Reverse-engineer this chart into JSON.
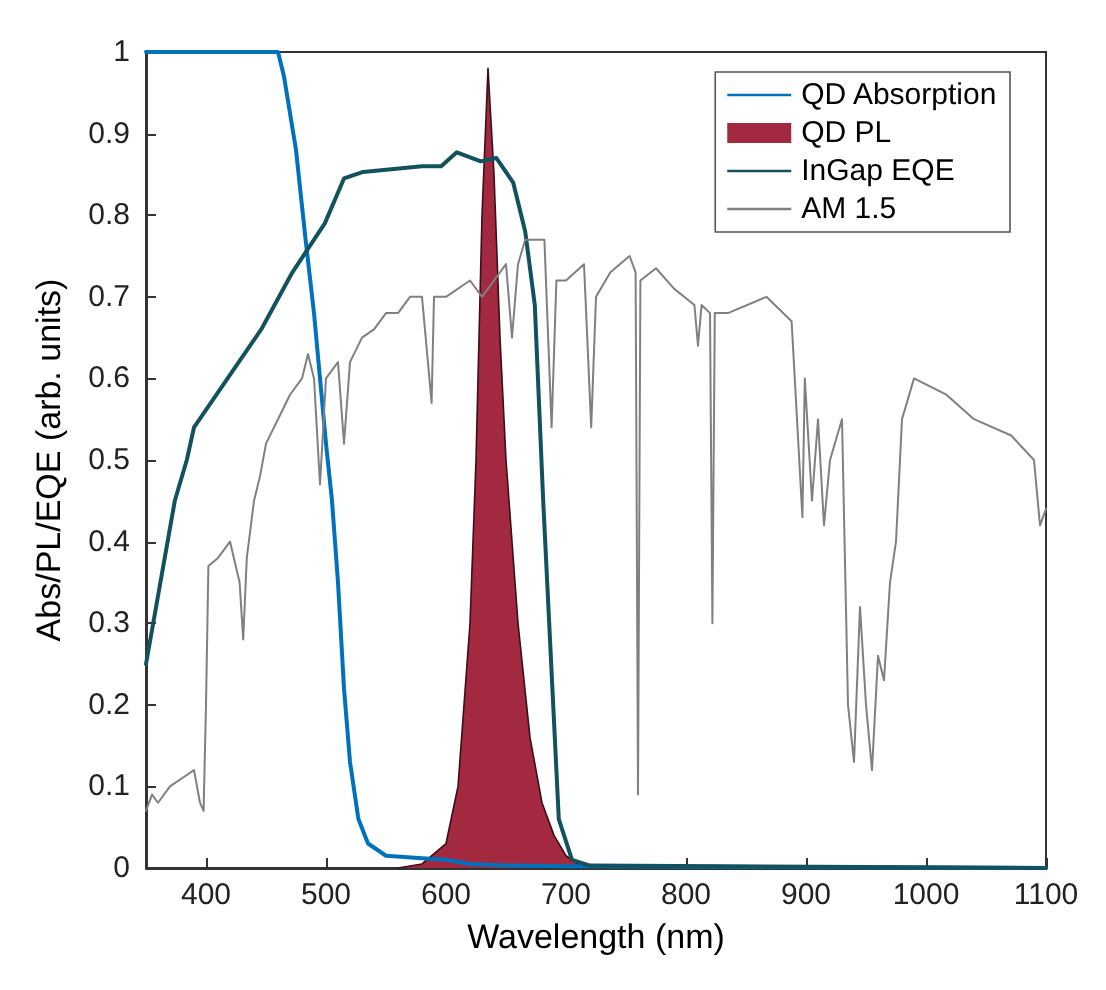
{
  "chart_data": {
    "type": "line",
    "xlabel": "Wavelength (nm)",
    "ylabel": "Abs/PL/EQE (arb. units)",
    "xlim": [
      350,
      1100
    ],
    "xticks": [
      400,
      500,
      600,
      700,
      800,
      900,
      1000,
      1100
    ],
    "ylim": [
      0,
      1
    ],
    "yticks": [
      0,
      0.1,
      0.2,
      0.3,
      0.4,
      0.5,
      0.6,
      0.7,
      0.8,
      0.9,
      1
    ],
    "grid": false,
    "legend": "top right",
    "marker": "none",
    "line_style": "solid",
    "series": [
      {
        "name": "QD Absorption",
        "color": "#0072bd",
        "x": [
          350,
          460,
          465,
          475,
          483,
          490,
          500,
          505,
          510,
          515,
          520,
          527,
          535,
          550,
          580,
          600,
          620,
          650,
          700,
          1100
        ],
        "values": [
          1,
          1,
          0.97,
          0.88,
          0.77,
          0.68,
          0.52,
          0.45,
          0.35,
          0.22,
          0.13,
          0.06,
          0.03,
          0.015,
          0.012,
          0.01,
          0.005,
          0.003,
          0.002,
          0
        ]
      },
      {
        "name": "QD PL",
        "type": "area",
        "color": "#a2293f",
        "x": [
          560,
          580,
          600,
          610,
          620,
          625,
          630,
          635,
          640,
          645,
          650,
          660,
          670,
          680,
          690,
          700,
          715
        ],
        "values": [
          0,
          0.005,
          0.03,
          0.1,
          0.3,
          0.5,
          0.8,
          0.98,
          0.85,
          0.65,
          0.5,
          0.3,
          0.16,
          0.08,
          0.04,
          0.015,
          0
        ]
      },
      {
        "name": "InGap EQE",
        "color": "#12525e",
        "x": [
          350,
          374,
          384,
          390,
          418,
          446,
          472,
          499,
          515,
          531,
          580,
          596,
          609,
          629,
          642,
          656,
          666,
          674,
          681,
          694,
          705,
          720,
          1100
        ],
        "values": [
          0.25,
          0.45,
          0.5,
          0.54,
          0.6,
          0.66,
          0.73,
          0.79,
          0.845,
          0.853,
          0.86,
          0.86,
          0.877,
          0.866,
          0.87,
          0.84,
          0.78,
          0.69,
          0.45,
          0.06,
          0.01,
          0.003,
          0
        ]
      },
      {
        "name": "AM 1.5",
        "color": "#808080",
        "x": [
          350,
          355,
          360,
          370,
          380,
          390,
          395,
          398,
          400,
          402,
          410,
          420,
          428,
          431,
          434,
          440,
          445,
          450,
          460,
          470,
          480,
          485,
          490,
          495,
          500,
          510,
          515,
          520,
          530,
          540,
          550,
          560,
          570,
          580,
          588,
          590,
          600,
          620,
          630,
          640,
          650,
          655,
          660,
          666,
          682,
          688,
          692,
          700,
          715,
          721,
          725,
          737,
          753,
          758,
          760,
          762,
          775,
          790,
          807,
          810,
          813,
          820,
          822,
          824,
          835,
          867,
          888,
          897,
          899,
          905,
          910,
          915,
          920,
          930,
          935,
          940,
          945,
          950,
          955,
          960,
          965,
          970,
          975,
          980,
          990,
          1017,
          1040,
          1071,
          1090,
          1095,
          1100
        ],
        "values": [
          0.07,
          0.09,
          0.08,
          0.1,
          0.11,
          0.12,
          0.08,
          0.07,
          0.2,
          0.37,
          0.38,
          0.4,
          0.35,
          0.28,
          0.38,
          0.45,
          0.48,
          0.52,
          0.55,
          0.58,
          0.6,
          0.63,
          0.6,
          0.47,
          0.6,
          0.62,
          0.52,
          0.62,
          0.65,
          0.66,
          0.68,
          0.68,
          0.7,
          0.7,
          0.57,
          0.7,
          0.7,
          0.72,
          0.7,
          0.72,
          0.74,
          0.65,
          0.74,
          0.77,
          0.77,
          0.54,
          0.72,
          0.72,
          0.74,
          0.54,
          0.7,
          0.73,
          0.75,
          0.73,
          0.09,
          0.72,
          0.735,
          0.71,
          0.69,
          0.64,
          0.69,
          0.68,
          0.3,
          0.68,
          0.68,
          0.7,
          0.67,
          0.43,
          0.6,
          0.45,
          0.55,
          0.42,
          0.5,
          0.55,
          0.2,
          0.13,
          0.32,
          0.2,
          0.12,
          0.26,
          0.23,
          0.35,
          0.4,
          0.55,
          0.6,
          0.58,
          0.55,
          0.53,
          0.5,
          0.42,
          0.44
        ]
      }
    ]
  }
}
